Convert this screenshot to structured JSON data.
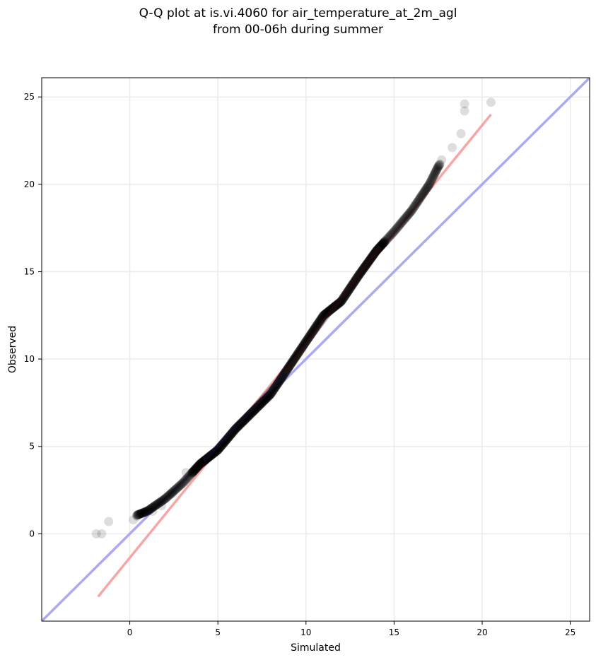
{
  "chart_data": {
    "type": "scatter",
    "title": "Q-Q plot at is.vi.4060 for air_temperature_at_2m_agl",
    "subtitle": "from 00-06h during summer",
    "xlabel": "Simulated",
    "ylabel": "Observed",
    "xlim": [
      -5,
      26.1
    ],
    "ylim": [
      -5,
      26.1
    ],
    "xticks": [
      0,
      5,
      10,
      15,
      20,
      25
    ],
    "yticks": [
      0,
      5,
      10,
      15,
      20,
      25
    ],
    "grid": true,
    "reference_line": {
      "x": [
        -5,
        26.1
      ],
      "y": [
        -5,
        26.1
      ],
      "color": "#aaaaf0"
    },
    "fit_line": {
      "x": [
        -1.8,
        20.5
      ],
      "y": [
        -3.6,
        24.0
      ],
      "color": "#f7a6a6"
    },
    "quantile_curve": {
      "x": [
        -1.8,
        -1.0,
        0.0,
        1.0,
        2.0,
        3.0,
        4.0,
        5.0,
        6.0,
        7.0,
        8.0,
        9.0,
        10.0,
        11.0,
        12.0,
        13.0,
        14.0,
        15.0,
        16.0,
        17.0,
        17.5,
        18.0,
        18.5,
        19.0,
        19.1,
        20.5
      ],
      "y": [
        0.0,
        0.6,
        0.9,
        1.3,
        2.0,
        2.9,
        4.0,
        4.8,
        6.0,
        7.0,
        8.0,
        9.5,
        11.0,
        12.5,
        13.3,
        14.8,
        16.2,
        17.3,
        18.5,
        20.0,
        21.0,
        21.8,
        22.3,
        23.0,
        24.4,
        24.7
      ]
    },
    "points": [
      [
        -1.9,
        0.0
      ],
      [
        -1.6,
        0.0
      ],
      [
        -1.2,
        0.7
      ],
      [
        0.2,
        0.8
      ],
      [
        0.4,
        1.0
      ],
      [
        0.8,
        1.2
      ],
      [
        1.3,
        1.3
      ],
      [
        1.8,
        1.6
      ],
      [
        2.4,
        2.3
      ],
      [
        3.2,
        3.5
      ],
      [
        19.0,
        24.6
      ],
      [
        19.0,
        24.2
      ],
      [
        20.5,
        24.7
      ],
      [
        18.8,
        22.9
      ],
      [
        18.3,
        22.1
      ],
      [
        17.7,
        21.4
      ]
    ],
    "colors": {
      "points": "#000000",
      "grid": "#ebebeb",
      "axes": "#000000",
      "band_low": "#1a1a40",
      "band_high": "#401a1a"
    }
  }
}
